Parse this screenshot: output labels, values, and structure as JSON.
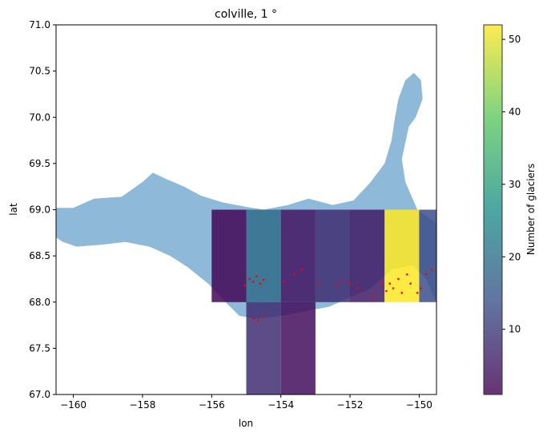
{
  "chart_data": {
    "type": "heatmap",
    "title": "colville, 1 °",
    "xlabel": "lon",
    "ylabel": "lat",
    "xlim": [
      -160.5,
      -149.5
    ],
    "ylim": [
      67.0,
      71.0
    ],
    "xticks": [
      -160,
      -158,
      -156,
      -154,
      -152,
      -150
    ],
    "yticks": [
      67.0,
      67.5,
      68.0,
      68.5,
      69.0,
      69.5,
      70.0,
      70.5,
      71.0
    ],
    "grid": false,
    "colorbar": {
      "label": "Number of glaciers",
      "range": [
        1,
        52
      ],
      "ticks": [
        10,
        20,
        30,
        40,
        50
      ],
      "colormap": "viridis"
    },
    "cells": [
      {
        "lon": [
          -156,
          -155
        ],
        "lat": [
          68,
          69
        ],
        "value": 2
      },
      {
        "lon": [
          -155,
          -154
        ],
        "lat": [
          68,
          69
        ],
        "value": 19
      },
      {
        "lon": [
          -154,
          -153
        ],
        "lat": [
          68,
          69
        ],
        "value": 4
      },
      {
        "lon": [
          -153,
          -152
        ],
        "lat": [
          68,
          69
        ],
        "value": 8
      },
      {
        "lon": [
          -152,
          -151
        ],
        "lat": [
          68,
          69
        ],
        "value": 5
      },
      {
        "lon": [
          -151,
          -150
        ],
        "lat": [
          68,
          69
        ],
        "value": 52
      },
      {
        "lon": [
          -150,
          -149
        ],
        "lat": [
          68,
          69
        ],
        "value": 13
      },
      {
        "lon": [
          -155,
          -154
        ],
        "lat": [
          67,
          68
        ],
        "value": 8
      },
      {
        "lon": [
          -154,
          -153
        ],
        "lat": [
          67,
          68
        ],
        "value": 3
      }
    ],
    "basin_color": "#8fb9d8",
    "basin_outline": [
      [
        -160.5,
        69.02
      ],
      [
        -160.0,
        69.02
      ],
      [
        -159.4,
        69.12
      ],
      [
        -158.6,
        69.14
      ],
      [
        -158.0,
        69.3
      ],
      [
        -157.7,
        69.4
      ],
      [
        -157.3,
        69.33
      ],
      [
        -156.8,
        69.25
      ],
      [
        -156.3,
        69.15
      ],
      [
        -155.7,
        69.08
      ],
      [
        -155.0,
        69.03
      ],
      [
        -154.5,
        69.0
      ],
      [
        -153.8,
        69.05
      ],
      [
        -153.2,
        69.12
      ],
      [
        -152.5,
        69.05
      ],
      [
        -151.9,
        69.1
      ],
      [
        -151.4,
        69.3
      ],
      [
        -151.0,
        69.5
      ],
      [
        -150.8,
        69.75
      ],
      [
        -150.7,
        70.0
      ],
      [
        -150.6,
        70.2
      ],
      [
        -150.4,
        70.4
      ],
      [
        -150.15,
        70.48
      ],
      [
        -149.95,
        70.4
      ],
      [
        -149.9,
        70.2
      ],
      [
        -150.1,
        70.0
      ],
      [
        -150.3,
        69.9
      ],
      [
        -150.5,
        69.55
      ],
      [
        -150.4,
        69.3
      ],
      [
        -150.05,
        69.0
      ],
      [
        -149.5,
        68.85
      ],
      [
        -149.5,
        68.0
      ],
      [
        -149.8,
        68.25
      ],
      [
        -150.2,
        68.4
      ],
      [
        -150.8,
        68.35
      ],
      [
        -151.4,
        68.15
      ],
      [
        -152.0,
        68.05
      ],
      [
        -152.6,
        67.95
      ],
      [
        -153.3,
        67.9
      ],
      [
        -154.0,
        67.85
      ],
      [
        -154.7,
        67.82
      ],
      [
        -155.2,
        67.85
      ],
      [
        -155.6,
        68.0
      ],
      [
        -156.1,
        68.2
      ],
      [
        -156.7,
        68.38
      ],
      [
        -157.2,
        68.5
      ],
      [
        -157.8,
        68.6
      ],
      [
        -158.5,
        68.65
      ],
      [
        -159.2,
        68.62
      ],
      [
        -159.9,
        68.6
      ],
      [
        -160.3,
        68.65
      ],
      [
        -160.5,
        68.7
      ]
    ],
    "glacier_points": [
      [
        -155.05,
        68.18
      ],
      [
        -154.9,
        68.25
      ],
      [
        -154.8,
        68.22
      ],
      [
        -154.7,
        68.28
      ],
      [
        -154.6,
        68.2
      ],
      [
        -154.5,
        68.24
      ],
      [
        -153.9,
        68.22
      ],
      [
        -153.6,
        68.3
      ],
      [
        -153.4,
        68.35
      ],
      [
        -152.9,
        68.2
      ],
      [
        -152.4,
        68.18
      ],
      [
        -152.2,
        68.22
      ],
      [
        -152.0,
        68.2
      ],
      [
        -151.8,
        68.15
      ],
      [
        -151.35,
        68.05
      ],
      [
        -151.1,
        68.2
      ],
      [
        -150.95,
        68.12
      ],
      [
        -150.85,
        68.2
      ],
      [
        -150.75,
        68.15
      ],
      [
        -150.6,
        68.25
      ],
      [
        -150.5,
        68.1
      ],
      [
        -150.35,
        68.3
      ],
      [
        -150.25,
        68.2
      ],
      [
        -150.05,
        68.1
      ],
      [
        -149.95,
        68.15
      ],
      [
        -149.8,
        68.3
      ],
      [
        -149.65,
        68.35
      ],
      [
        -154.8,
        67.82
      ],
      [
        -154.65,
        67.8
      ],
      [
        -154.5,
        67.85
      ]
    ]
  }
}
